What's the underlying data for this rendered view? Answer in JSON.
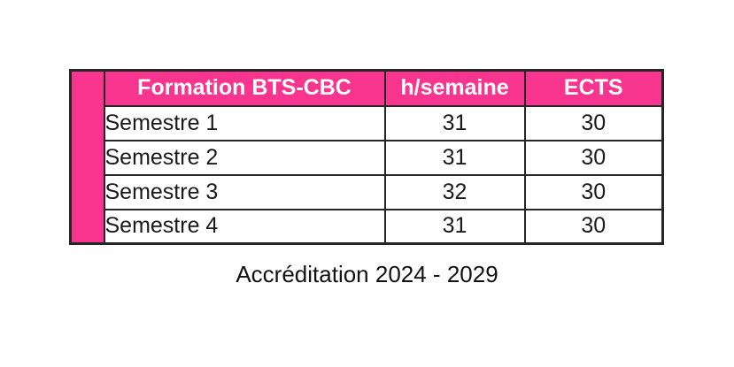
{
  "table": {
    "headers": [
      "Formation BTS-CBC",
      "h/semaine",
      "ECTS"
    ],
    "rows": [
      {
        "label": "Semestre 1",
        "hours_per_week": "31",
        "ects": "30"
      },
      {
        "label": "Semestre 2",
        "hours_per_week": "31",
        "ects": "30"
      },
      {
        "label": "Semestre 3",
        "hours_per_week": "32",
        "ects": "30"
      },
      {
        "label": "Semestre 4",
        "hours_per_week": "31",
        "ects": "30"
      }
    ]
  },
  "caption": "Accréditation 2024 - 2029",
  "colors": {
    "accent_pink": "#f7358f",
    "border": "#262626",
    "header_text": "#ffffff",
    "body_text": "#1a1a1a",
    "background": "#ffffff"
  }
}
